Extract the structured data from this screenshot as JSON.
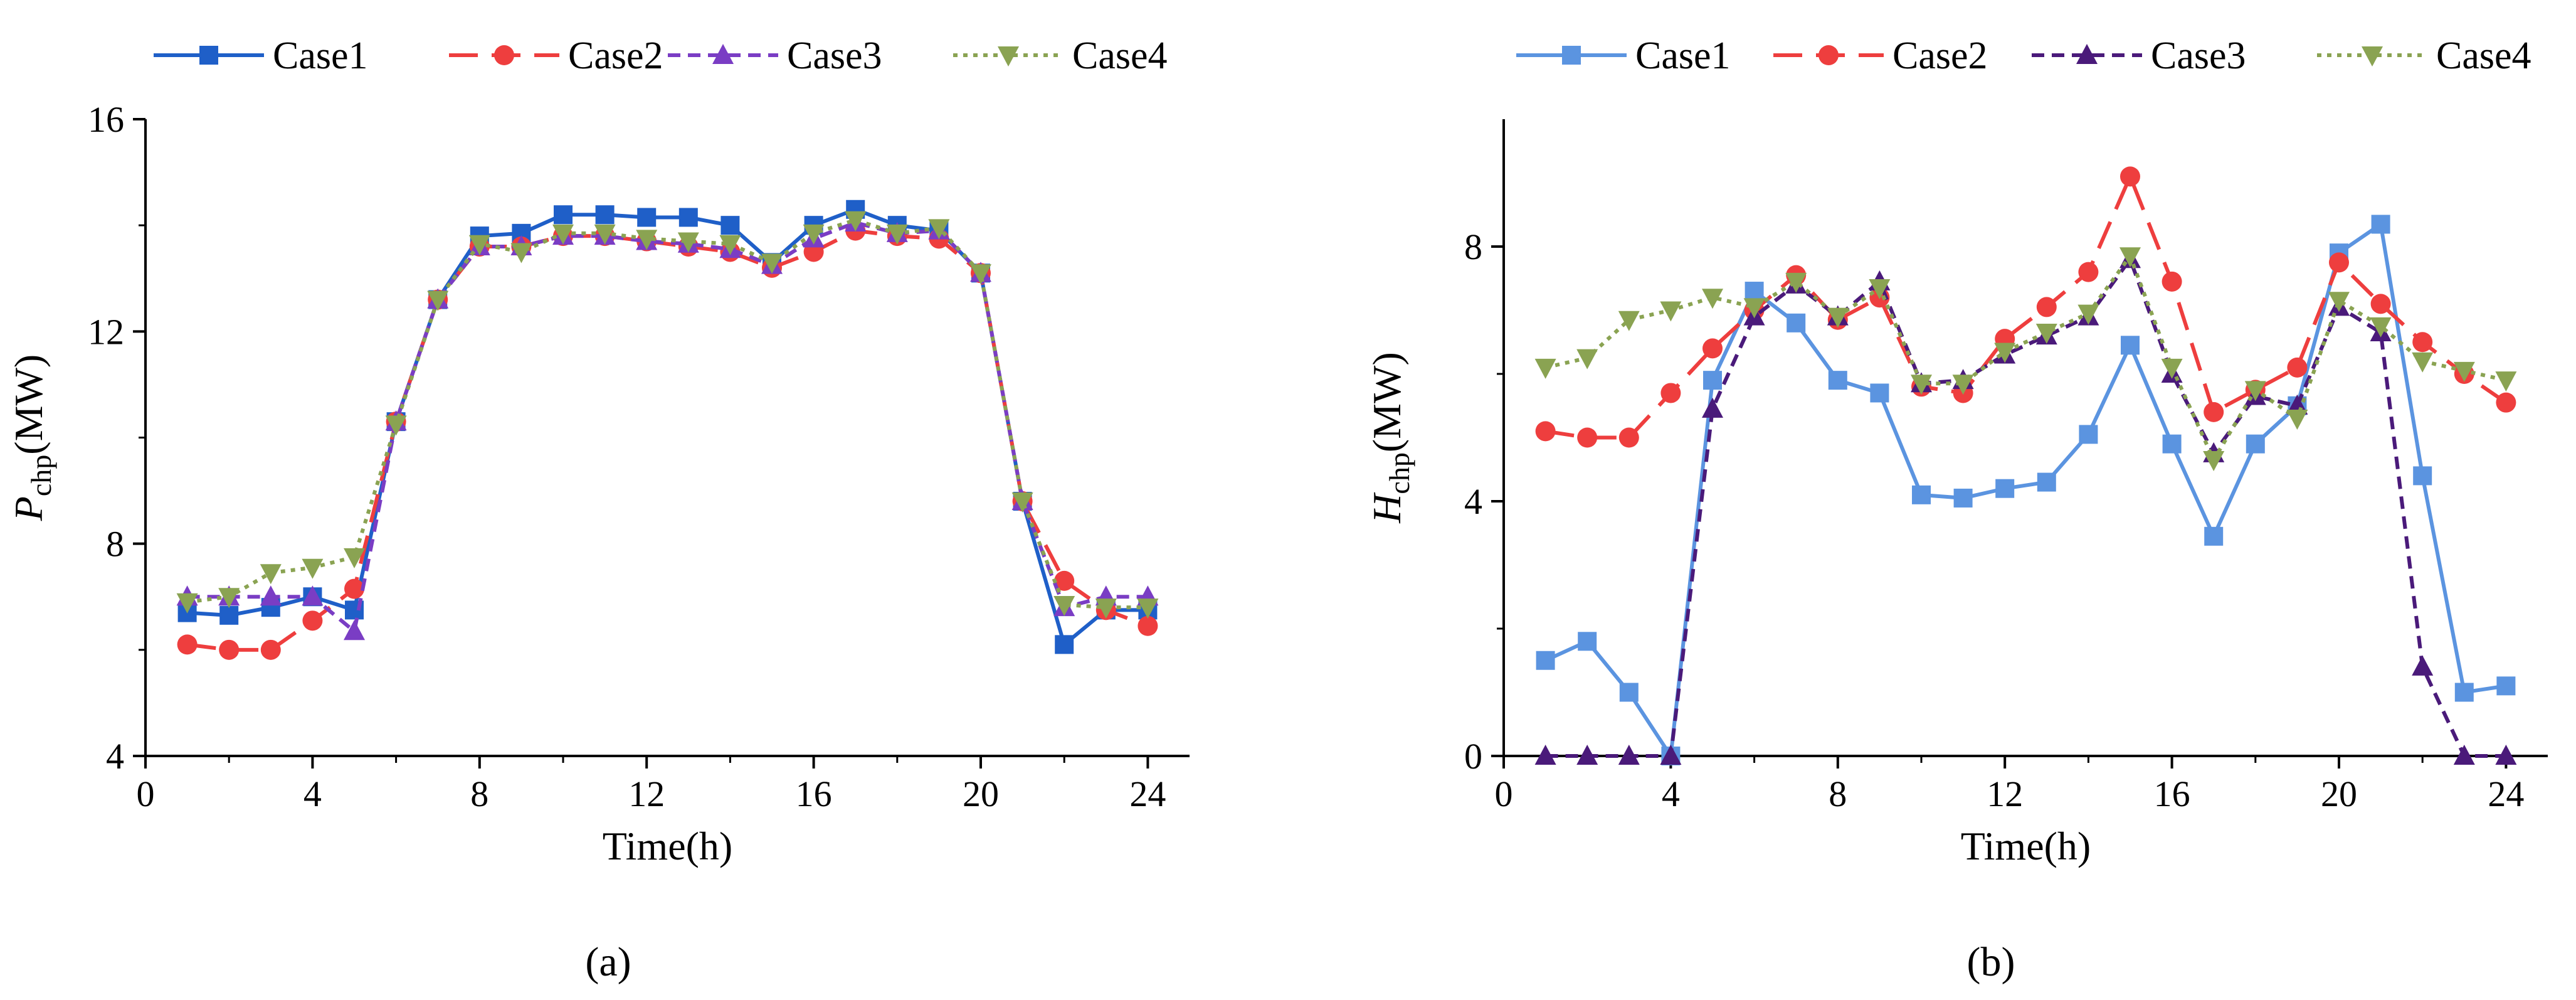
{
  "captions": {
    "a": "(a)",
    "b": "(b)"
  },
  "chart_data": [
    {
      "type": "line",
      "panel": "a",
      "title": "",
      "xlabel": "Time(h)",
      "ylabel": {
        "main": "P",
        "subscript": "chp",
        "unit": "(MW)"
      },
      "xlim": [
        0,
        25
      ],
      "ylim": [
        4,
        16
      ],
      "xticks": [
        0,
        4,
        8,
        12,
        16,
        20,
        24
      ],
      "yticks": [
        4,
        8,
        12,
        16
      ],
      "legend_position": "top",
      "x": [
        1,
        2,
        3,
        4,
        5,
        6,
        7,
        8,
        9,
        10,
        11,
        12,
        13,
        14,
        15,
        16,
        17,
        18,
        19,
        20,
        21,
        22,
        23,
        24
      ],
      "series": [
        {
          "name": "Case1",
          "color": "#1f5fc8",
          "marker": "square",
          "dash": "solid",
          "values": [
            6.7,
            6.65,
            6.8,
            7.0,
            6.75,
            10.3,
            12.6,
            13.8,
            13.85,
            14.2,
            14.2,
            14.15,
            14.15,
            14.0,
            13.3,
            14.0,
            14.3,
            14.0,
            13.9,
            13.1,
            8.8,
            6.1,
            6.75,
            6.75
          ]
        },
        {
          "name": "Case2",
          "color": "#ee3e3e",
          "marker": "circle",
          "dash": "longdash",
          "values": [
            6.1,
            6.0,
            6.0,
            6.55,
            7.15,
            10.3,
            12.6,
            13.6,
            13.6,
            13.8,
            13.8,
            13.7,
            13.6,
            13.5,
            13.2,
            13.5,
            13.9,
            13.8,
            13.75,
            13.1,
            8.8,
            7.3,
            6.75,
            6.45
          ]
        },
        {
          "name": "Case3",
          "color": "#7a3dc4",
          "marker": "triangle-up",
          "dash": "dash",
          "values": [
            7.0,
            7.0,
            7.0,
            7.0,
            6.35,
            10.3,
            12.6,
            13.6,
            13.6,
            13.8,
            13.8,
            13.7,
            13.65,
            13.55,
            13.25,
            13.75,
            14.05,
            13.85,
            13.9,
            13.1,
            8.8,
            6.8,
            7.0,
            7.0
          ]
        },
        {
          "name": "Case4",
          "color": "#8aa352",
          "marker": "triangle-down",
          "dash": "dot",
          "values": [
            6.9,
            7.0,
            7.45,
            7.55,
            7.75,
            10.25,
            12.6,
            13.65,
            13.5,
            13.85,
            13.85,
            13.75,
            13.7,
            13.65,
            13.3,
            13.85,
            14.1,
            13.85,
            13.95,
            13.1,
            8.8,
            6.85,
            6.8,
            6.8
          ]
        }
      ]
    },
    {
      "type": "line",
      "panel": "b",
      "title": "",
      "xlabel": "Time(h)",
      "ylabel": {
        "main": "H",
        "subscript": "chp",
        "unit": "(MW)"
      },
      "xlim": [
        0,
        25
      ],
      "ylim": [
        0,
        10
      ],
      "xticks": [
        0,
        4,
        8,
        12,
        16,
        20,
        24
      ],
      "yticks": [
        0,
        4,
        8
      ],
      "legend_position": "top",
      "x": [
        1,
        2,
        3,
        4,
        5,
        6,
        7,
        8,
        9,
        10,
        11,
        12,
        13,
        14,
        15,
        16,
        17,
        18,
        19,
        20,
        21,
        22,
        23,
        24
      ],
      "series": [
        {
          "name": "Case1",
          "color": "#5b94e0",
          "marker": "square",
          "dash": "solid",
          "values": [
            1.5,
            1.8,
            1.0,
            0.0,
            5.9,
            7.3,
            6.8,
            5.9,
            5.7,
            4.1,
            4.05,
            4.2,
            4.3,
            5.05,
            6.45,
            4.9,
            3.45,
            4.9,
            5.5,
            7.9,
            8.35,
            4.4,
            1.0,
            1.1
          ]
        },
        {
          "name": "Case2",
          "color": "#ee3e3e",
          "marker": "circle",
          "dash": "longdash",
          "values": [
            5.1,
            5.0,
            5.0,
            5.7,
            6.4,
            7.0,
            7.55,
            6.85,
            7.2,
            5.8,
            5.7,
            6.55,
            7.05,
            7.6,
            9.1,
            7.45,
            5.4,
            5.75,
            6.1,
            7.75,
            7.1,
            6.5,
            6.0,
            5.55
          ]
        },
        {
          "name": "Case3",
          "color": "#4a1a7a",
          "marker": "triangle-up",
          "dash": "dash",
          "values": [
            0.0,
            0.0,
            0.0,
            0.0,
            5.45,
            6.9,
            7.4,
            6.9,
            7.45,
            5.85,
            5.9,
            6.3,
            6.6,
            6.9,
            7.8,
            6.0,
            4.75,
            5.65,
            5.5,
            7.05,
            6.65,
            1.4,
            0.0,
            0.0
          ]
        },
        {
          "name": "Case4",
          "color": "#8aa352",
          "marker": "triangle-down",
          "dash": "dot",
          "values": [
            6.1,
            6.25,
            6.85,
            7.0,
            7.2,
            7.05,
            7.45,
            6.9,
            7.35,
            5.85,
            5.85,
            6.35,
            6.65,
            6.95,
            7.85,
            6.1,
            4.65,
            5.75,
            5.3,
            7.15,
            6.75,
            6.2,
            6.05,
            5.9
          ]
        }
      ]
    }
  ]
}
